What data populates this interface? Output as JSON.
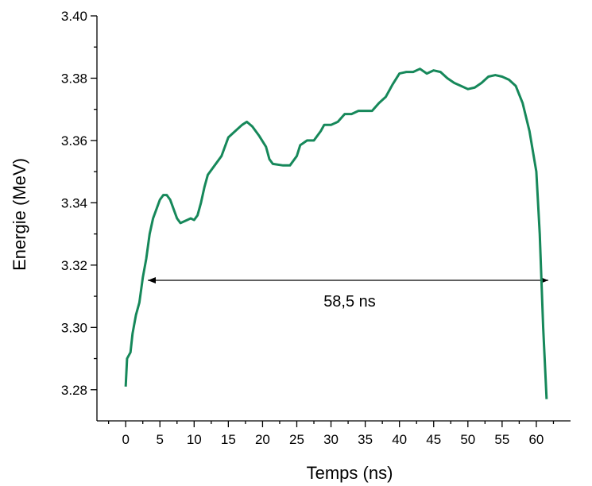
{
  "chart_data": {
    "type": "line",
    "xlabel": "Temps (ns)",
    "ylabel": "Energie (MeV)",
    "annotation": "58,5 ns",
    "xlim": [
      -4.2,
      65
    ],
    "xticks": [
      0,
      5,
      10,
      15,
      20,
      25,
      30,
      35,
      40,
      45,
      50,
      55,
      60
    ],
    "ylim": [
      3.27,
      3.4
    ],
    "yticks": [
      3.28,
      {
        "value": 3.3,
        "label": "3.30"
      },
      3.32,
      3.34,
      3.36,
      3.38,
      {
        "value": 3.4,
        "label": "3.40"
      }
    ],
    "grid": false,
    "series": [
      {
        "color": "#16885a",
        "x": [
          0,
          0.2,
          0.7,
          1,
          1.5,
          2,
          2.5,
          3,
          3.5,
          4,
          4.5,
          5,
          5.5,
          6,
          6.5,
          7,
          7.5,
          8,
          9,
          9.5,
          10,
          10.5,
          11,
          11.5,
          12,
          13,
          14,
          15,
          16,
          17,
          17.7,
          18.5,
          19.5,
          20.5,
          21,
          21.5,
          23,
          24,
          25,
          25.5,
          26.5,
          27.5,
          28.5,
          29,
          30,
          31,
          32,
          33,
          34,
          36,
          37,
          38,
          39,
          40,
          41,
          42,
          43,
          44,
          45,
          46,
          47,
          48,
          49,
          50,
          51,
          52,
          53,
          54,
          55,
          56,
          57,
          58,
          59,
          60,
          60.5,
          61,
          61.5
        ],
        "values": [
          3.281,
          3.29,
          3.292,
          3.298,
          3.304,
          3.308,
          3.316,
          3.322,
          3.33,
          3.335,
          3.338,
          3.341,
          3.3425,
          3.3425,
          3.341,
          3.338,
          3.335,
          3.3335,
          3.3345,
          3.335,
          3.3345,
          3.336,
          3.34,
          3.345,
          3.349,
          3.352,
          3.355,
          3.361,
          3.363,
          3.365,
          3.366,
          3.3645,
          3.3615,
          3.358,
          3.354,
          3.3525,
          3.352,
          3.352,
          3.355,
          3.3585,
          3.36,
          3.36,
          3.363,
          3.365,
          3.365,
          3.366,
          3.3685,
          3.3685,
          3.3695,
          3.3695,
          3.372,
          3.374,
          3.378,
          3.3815,
          3.382,
          3.382,
          3.383,
          3.3815,
          3.3825,
          3.382,
          3.38,
          3.3785,
          3.3775,
          3.3765,
          3.377,
          3.3785,
          3.3805,
          3.381,
          3.3805,
          3.3795,
          3.3775,
          3.372,
          3.363,
          3.35,
          3.33,
          3.3,
          3.277
        ]
      }
    ]
  }
}
